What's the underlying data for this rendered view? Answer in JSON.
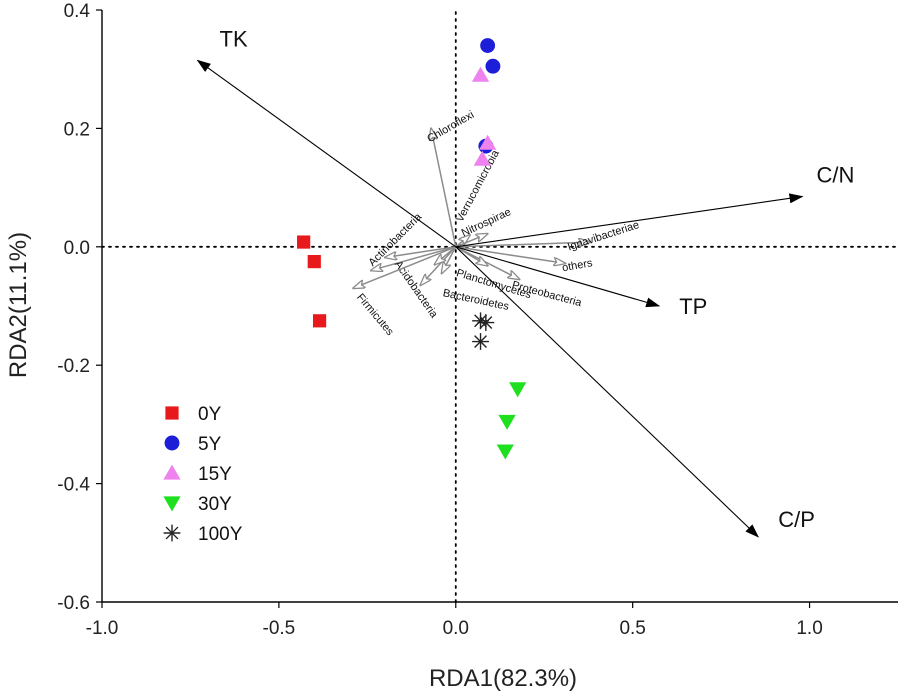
{
  "chart_data": {
    "type": "scatter",
    "subtype": "RDA biplot",
    "title": "",
    "xlabel": "RDA1(82.3%)",
    "ylabel": "RDA2(11.1%)",
    "xlim": [
      -1.0,
      1.25
    ],
    "ylim": [
      -0.6,
      0.4
    ],
    "xticks": [
      "-1.0",
      "-0.5",
      "0.0",
      "0.5",
      "1.0"
    ],
    "yticks": [
      "0.4",
      "0.2",
      "0.0",
      "-0.2",
      "-0.4",
      "-0.6"
    ],
    "reference_lines": {
      "x": 0.0,
      "y": 0.0,
      "style": "dotted"
    },
    "legend": {
      "position": "bottom-left"
    },
    "series": [
      {
        "name": "0Y",
        "marker": "square",
        "color": "#e8191c",
        "points": [
          [
            -0.43,
            0.008
          ],
          [
            -0.4,
            -0.025
          ],
          [
            -0.385,
            -0.125
          ]
        ]
      },
      {
        "name": "5Y",
        "marker": "circle",
        "color": "#1d1fd8",
        "points": [
          [
            0.09,
            0.34
          ],
          [
            0.105,
            0.305
          ],
          [
            0.085,
            0.17
          ]
        ]
      },
      {
        "name": "15Y",
        "marker": "triangle-up",
        "color": "#ee82ee",
        "points": [
          [
            0.07,
            0.29
          ],
          [
            0.09,
            0.175
          ],
          [
            0.075,
            0.148
          ]
        ]
      },
      {
        "name": "30Y",
        "marker": "triangle-down",
        "color": "#1ee01e",
        "points": [
          [
            0.175,
            -0.24
          ],
          [
            0.145,
            -0.295
          ],
          [
            0.14,
            -0.345
          ]
        ]
      },
      {
        "name": "100Y",
        "marker": "asterisk",
        "color": "#222222",
        "points": [
          [
            0.07,
            -0.125
          ],
          [
            0.085,
            -0.128
          ],
          [
            0.07,
            -0.16
          ]
        ]
      }
    ],
    "environmental_vectors": [
      {
        "label": "TK",
        "end": [
          -0.73,
          0.315
        ]
      },
      {
        "label": "C/N",
        "end": [
          0.98,
          0.085
        ]
      },
      {
        "label": "TP",
        "end": [
          0.575,
          -0.1
        ]
      },
      {
        "label": "C/P",
        "end": [
          0.855,
          -0.49
        ]
      }
    ],
    "taxa_vectors": [
      {
        "label": "Chloroflexi",
        "end": [
          -0.07,
          0.2
        ],
        "label_pos": [
          -0.01,
          0.198
        ],
        "label_rotation": -30
      },
      {
        "label": "Verrucomicrobia",
        "end": [
          0.04,
          0.02
        ],
        "label_pos": [
          0.07,
          0.1
        ],
        "label_rotation": -62
      },
      {
        "label": "Nitrospirae",
        "end": [
          0.09,
          0.022
        ],
        "label_pos": [
          0.09,
          0.036
        ],
        "label_rotation": -25
      },
      {
        "label": "Ignavibacteriae",
        "end": [
          0.38,
          0.008
        ],
        "label_pos": [
          0.42,
          0.013
        ],
        "label_rotation": -18
      },
      {
        "label": "others",
        "end": [
          0.31,
          -0.028
        ],
        "label_pos": [
          0.345,
          -0.037
        ],
        "label_rotation": -10
      },
      {
        "label": "Proteobacteria",
        "end": [
          0.18,
          -0.055
        ],
        "label_pos": [
          0.255,
          -0.085
        ],
        "label_rotation": 15
      },
      {
        "label": "Planctomycetes",
        "end": [
          0.09,
          -0.032
        ],
        "label_pos": [
          0.105,
          -0.068
        ],
        "label_rotation": 17
      },
      {
        "label": "Bacteroidetes",
        "end": [
          -0.04,
          -0.045
        ],
        "label_pos": [
          0.055,
          -0.095
        ],
        "label_rotation": 12
      },
      {
        "label": "Actinobacteria",
        "end": [
          -0.2,
          -0.018
        ],
        "label_pos": [
          -0.165,
          0.008
        ],
        "label_rotation": -45
      },
      {
        "label": "Acidobacteria",
        "end": [
          -0.24,
          -0.04
        ],
        "label_pos": [
          -0.12,
          -0.075
        ],
        "label_rotation": 55
      },
      {
        "label": "Firmicutes",
        "end": [
          -0.29,
          -0.07
        ],
        "label_pos": [
          -0.235,
          -0.118
        ],
        "label_rotation": 50
      },
      {
        "label": "",
        "end": [
          -0.1,
          -0.065
        ]
      },
      {
        "label": "",
        "end": [
          -0.06,
          -0.03
        ]
      }
    ]
  }
}
